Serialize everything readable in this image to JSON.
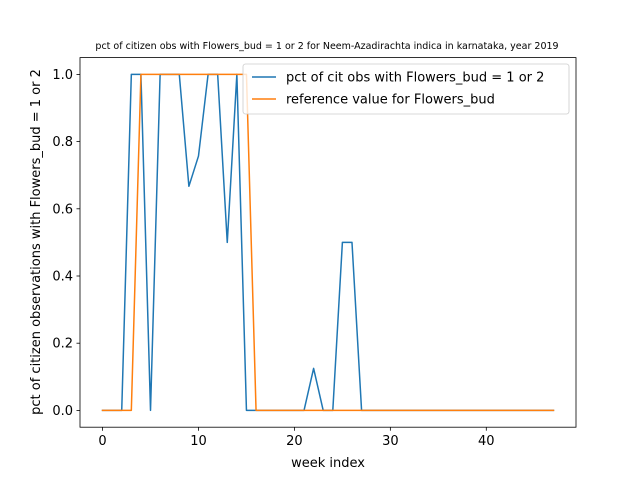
{
  "chart_data": {
    "type": "line",
    "title": "pct of citizen obs with Flowers_bud = 1 or 2 for Neem-Azadirachta indica in karnataka, year 2019",
    "xlabel": "week index",
    "ylabel": "pct of citizen observations with Flowers_bud = 1 or 2",
    "xlim": [
      -2.35,
      49.35
    ],
    "ylim": [
      -0.05,
      1.05
    ],
    "xticks": [
      0,
      10,
      20,
      30,
      40
    ],
    "yticks": [
      0.0,
      0.2,
      0.4,
      0.6,
      0.8,
      1.0
    ],
    "xtick_labels": [
      "0",
      "10",
      "20",
      "30",
      "40"
    ],
    "ytick_labels": [
      "0.0",
      "0.2",
      "0.4",
      "0.6",
      "0.8",
      "1.0"
    ],
    "grid": false,
    "legend_position": "upper-right",
    "series": [
      {
        "name": "pct of cit obs with Flowers_bud = 1 or 2",
        "color": "#1f77b4",
        "x": [
          0,
          1,
          2,
          3,
          4,
          5,
          6,
          7,
          8,
          9,
          10,
          11,
          12,
          13,
          14,
          15,
          16,
          17,
          18,
          19,
          20,
          21,
          22,
          23,
          24,
          25,
          26,
          27,
          28,
          29,
          30,
          31,
          32,
          33,
          34,
          35,
          36,
          37,
          38,
          39,
          40,
          41,
          42,
          43,
          44,
          45,
          46,
          47
        ],
        "y": [
          0,
          0,
          0,
          1,
          1,
          0,
          1,
          1,
          1,
          0.667,
          0.757,
          1,
          1,
          0.5,
          1,
          0,
          0,
          0,
          0,
          0,
          0,
          0,
          0.125,
          0,
          0,
          0.5,
          0.5,
          0,
          0,
          0,
          0,
          0,
          0,
          0,
          0,
          0,
          0,
          0,
          0,
          0,
          0,
          0,
          0,
          0,
          0,
          0,
          0,
          0
        ]
      },
      {
        "name": "reference value for Flowers_bud",
        "color": "#ff7f0e",
        "x": [
          0,
          1,
          2,
          3,
          4,
          5,
          6,
          7,
          8,
          9,
          10,
          11,
          12,
          13,
          14,
          15,
          16,
          17,
          18,
          19,
          20,
          21,
          22,
          23,
          24,
          25,
          26,
          27,
          28,
          29,
          30,
          31,
          32,
          33,
          34,
          35,
          36,
          37,
          38,
          39,
          40,
          41,
          42,
          43,
          44,
          45,
          46,
          47
        ],
        "y": [
          0,
          0,
          0,
          0,
          1,
          1,
          1,
          1,
          1,
          1,
          1,
          1,
          1,
          1,
          1,
          1,
          0,
          0,
          0,
          0,
          0,
          0,
          0,
          0,
          0,
          0,
          0,
          0,
          0,
          0,
          0,
          0,
          0,
          0,
          0,
          0,
          0,
          0,
          0,
          0,
          0,
          0,
          0,
          0,
          0,
          0,
          0,
          0
        ]
      }
    ]
  }
}
